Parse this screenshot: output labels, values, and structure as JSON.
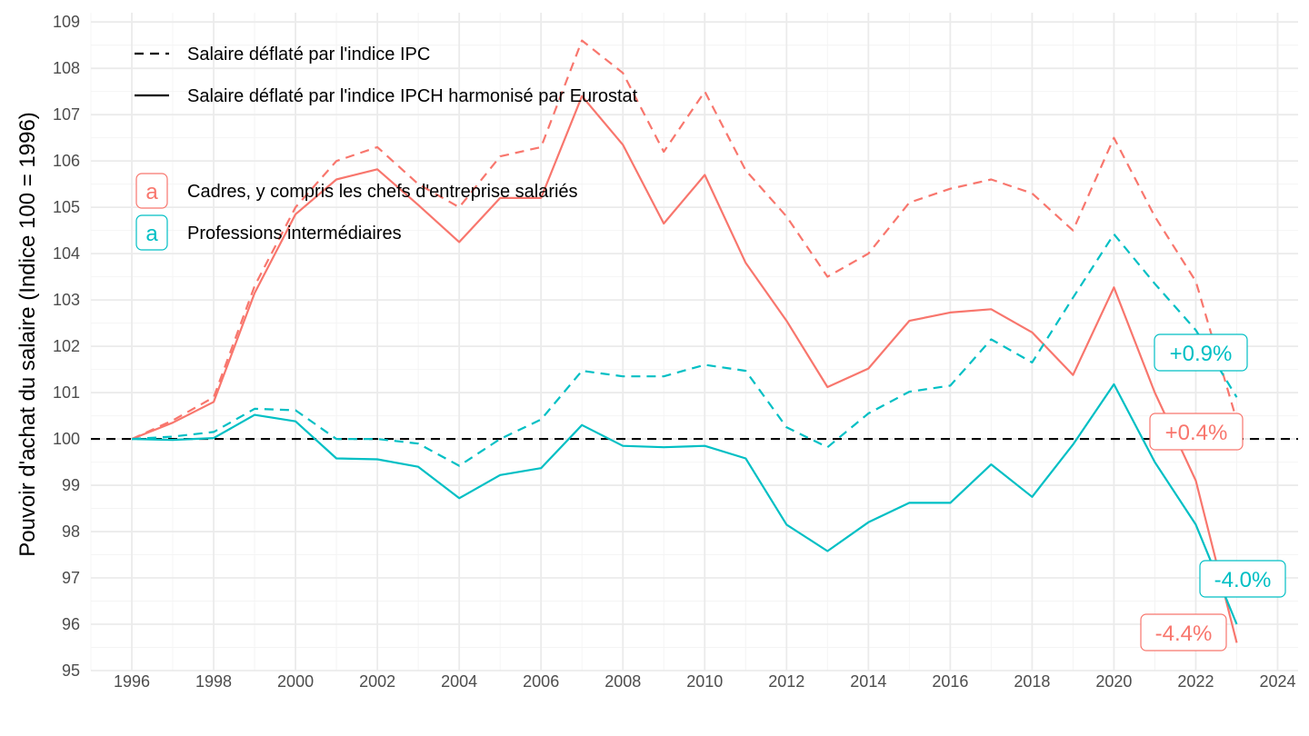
{
  "chart_data": {
    "type": "line",
    "title": "",
    "xlabel": "",
    "ylabel": "Pouvoir d'achat du salaire (Indice 100 = 1996)",
    "xlim": [
      1995,
      2024.5
    ],
    "ylim": [
      95,
      109.2
    ],
    "x_ticks": [
      1996,
      1998,
      2000,
      2002,
      2004,
      2006,
      2008,
      2010,
      2012,
      2014,
      2016,
      2018,
      2020,
      2022,
      2024
    ],
    "y_ticks": [
      95,
      96,
      97,
      98,
      99,
      100,
      101,
      102,
      103,
      104,
      105,
      106,
      107,
      108,
      109
    ],
    "grid": true,
    "reference_line": {
      "y": 100,
      "style": "dashed",
      "color": "#000000"
    },
    "x": [
      1996,
      1997,
      1998,
      1999,
      2000,
      2001,
      2002,
      2003,
      2004,
      2005,
      2006,
      2007,
      2008,
      2009,
      2010,
      2011,
      2012,
      2013,
      2014,
      2015,
      2016,
      2017,
      2018,
      2019,
      2020,
      2021,
      2022,
      2023
    ],
    "linetype_legend": [
      {
        "label": "Salaire déflaté par l'indice IPC",
        "style": "dashed"
      },
      {
        "label": "Salaire déflaté par l'indice IPCH harmonisé par Eurostat",
        "style": "solid"
      }
    ],
    "color_legend": [
      {
        "key": "a",
        "label": "Cadres, y compris les chefs d'entreprise salariés",
        "color": "#F8766D"
      },
      {
        "key": "a",
        "label": "Professions intermédiaires",
        "color": "#00BFC4"
      }
    ],
    "legend_position": "top-left",
    "series": [
      {
        "category": "Cadres, y compris les chefs d'entreprise salariés",
        "deflator": "Salaire déflaté par l'indice IPC",
        "style": "dashed",
        "color": "#F8766D",
        "values": [
          100,
          100.4,
          100.9,
          103.3,
          105.0,
          106.0,
          106.3,
          105.5,
          105.0,
          106.1,
          106.3,
          108.6,
          107.9,
          106.2,
          107.5,
          105.8,
          104.8,
          103.5,
          104.0,
          105.1,
          105.4,
          105.6,
          105.3,
          104.5,
          106.5,
          104.8,
          103.4,
          100.4
        ],
        "end_label": "+0.4%"
      },
      {
        "category": "Cadres, y compris les chefs d'entreprise salariés",
        "deflator": "Salaire déflaté par l'indice IPCH harmonisé par Eurostat",
        "style": "solid",
        "color": "#F8766D",
        "values": [
          100,
          100.35,
          100.8,
          103.15,
          104.85,
          105.6,
          105.82,
          105.05,
          104.25,
          105.2,
          105.2,
          107.4,
          106.35,
          104.65,
          105.7,
          103.8,
          102.55,
          101.12,
          101.52,
          102.55,
          102.73,
          102.8,
          102.3,
          101.38,
          103.27,
          101.0,
          99.1,
          95.6
        ],
        "end_label": "-4.4%"
      },
      {
        "category": "Professions intermédiaires",
        "deflator": "Salaire déflaté par l'indice IPC",
        "style": "dashed",
        "color": "#00BFC4",
        "values": [
          100,
          100.05,
          100.15,
          100.65,
          100.62,
          100.0,
          100.0,
          99.9,
          99.42,
          100.0,
          100.42,
          101.47,
          101.35,
          101.35,
          101.6,
          101.47,
          100.25,
          99.82,
          100.55,
          101.02,
          101.15,
          102.15,
          101.65,
          103.05,
          104.42,
          103.35,
          102.35,
          100.9
        ],
        "end_label": "+0.9%"
      },
      {
        "category": "Professions intermédiaires",
        "deflator": "Salaire déflaté par l'indice IPCH harmonisé par Eurostat",
        "style": "solid",
        "color": "#00BFC4",
        "values": [
          100,
          99.98,
          100.02,
          100.52,
          100.38,
          99.58,
          99.56,
          99.4,
          98.72,
          99.22,
          99.37,
          100.3,
          99.85,
          99.82,
          99.85,
          99.58,
          98.15,
          97.58,
          98.2,
          98.62,
          98.62,
          99.45,
          98.75,
          99.88,
          101.18,
          99.5,
          98.15,
          96.0
        ],
        "end_label": "-4.0%"
      }
    ]
  }
}
